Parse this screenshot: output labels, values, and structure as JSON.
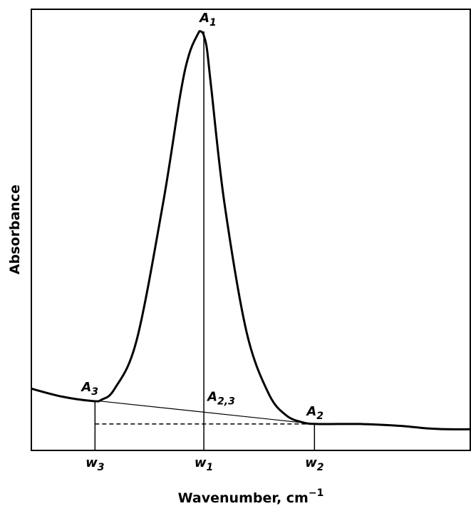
{
  "chart_data": {
    "type": "line",
    "xlabel": "Wavenumber, cm",
    "xlabel_sup": "−1",
    "ylabel": "Absorbance",
    "series": [
      {
        "x": [
          0.0,
          0.07,
          0.14,
          0.16,
          0.19,
          0.24,
          0.3,
          0.34,
          0.36,
          0.38,
          0.385,
          0.39,
          0.393,
          0.4,
          0.41,
          0.44,
          0.49,
          0.54,
          0.58,
          0.62,
          0.65,
          0.7,
          0.75,
          0.8,
          0.85,
          0.9,
          0.95,
          1.0
        ],
        "y": [
          0.14,
          0.122,
          0.112,
          0.115,
          0.14,
          0.25,
          0.56,
          0.81,
          0.9,
          0.945,
          0.95,
          0.947,
          0.94,
          0.91,
          0.82,
          0.56,
          0.27,
          0.13,
          0.08,
          0.063,
          0.06,
          0.06,
          0.06,
          0.058,
          0.055,
          0.05,
          0.048,
          0.048
        ]
      }
    ],
    "xlim": [
      0,
      1
    ],
    "ylim": [
      0,
      1
    ],
    "baseline": {
      "x": [
        0.145,
        0.645
      ],
      "y": [
        0.113,
        0.06
      ]
    },
    "dashed_level": {
      "x": [
        0.145,
        0.645
      ],
      "y": 0.06
    },
    "markers": [
      {
        "x": 0.145,
        "y_top": 0.113,
        "label": "w",
        "sub": "3"
      },
      {
        "x": 0.393,
        "y_top": 0.95,
        "label": "w",
        "sub": "1"
      },
      {
        "x": 0.645,
        "y_top": 0.06,
        "label": "w",
        "sub": "2"
      }
    ],
    "annotations": [
      {
        "label": "A",
        "sub": "1",
        "x": 0.393,
        "y": 0.95
      },
      {
        "label": "A",
        "sub": "3",
        "x": 0.145,
        "y": 0.113
      },
      {
        "label": "A",
        "sub": "2,3",
        "x": 0.393,
        "y": 0.099
      },
      {
        "label": "A",
        "sub": "2",
        "x": 0.645,
        "y": 0.06
      }
    ],
    "grid": false,
    "ticks": false,
    "legend": "none"
  }
}
